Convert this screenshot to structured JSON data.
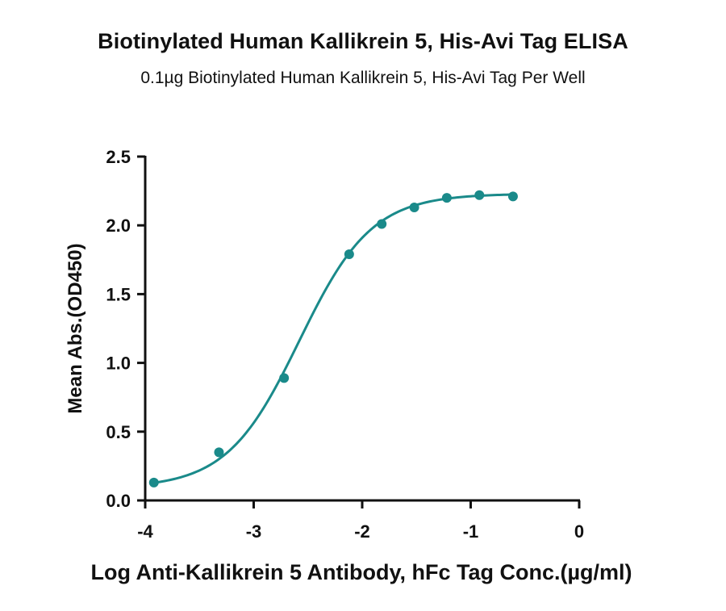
{
  "chart_data": {
    "type": "scatter",
    "title": "Biotinylated Human Kallikrein 5, His-Avi Tag ELISA",
    "subtitle": "0.1µg Biotinylated Human Kallikrein 5, His-Avi Tag Per Well",
    "xlabel": "Log Anti-Kallikrein 5 Antibody, hFc Tag Conc.(µg/ml)",
    "ylabel": "Mean Abs.(OD450)",
    "xlim": [
      -4,
      0
    ],
    "ylim": [
      0,
      2.5
    ],
    "x_ticks": [
      "-4",
      "-3",
      "-2",
      "-1",
      "0"
    ],
    "y_ticks": [
      "0.0",
      "0.5",
      "1.0",
      "1.5",
      "2.0",
      "2.5"
    ],
    "grid": false,
    "color": "#1a8a8a",
    "series": [
      {
        "x": [
          -3.92,
          -3.32,
          -2.72,
          -2.12,
          -1.82,
          -1.52,
          -1.22,
          -0.92,
          -0.61
        ],
        "y": [
          0.13,
          0.35,
          0.89,
          1.79,
          2.01,
          2.13,
          2.2,
          2.22,
          2.21
        ]
      }
    ],
    "fit": {
      "model": "4PL",
      "bottom": 0.09,
      "top": 2.23,
      "log_ec50": -2.58,
      "hill_slope": 1.3
    }
  }
}
